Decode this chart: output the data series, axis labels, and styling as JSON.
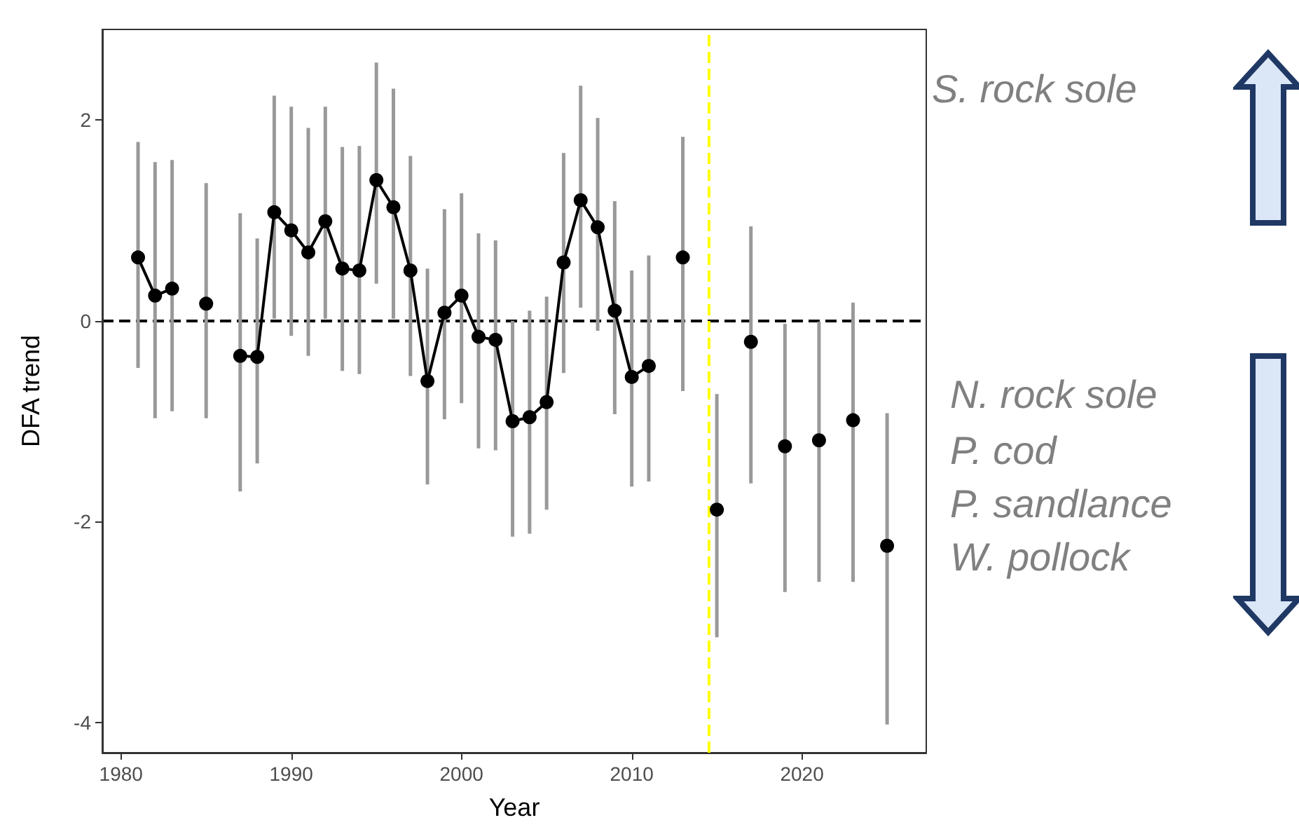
{
  "chart_data": {
    "type": "line",
    "xlabel": "Year",
    "ylabel": "DFA trend",
    "x": [
      1981,
      1982,
      1983,
      1984,
      1985,
      1986,
      1987,
      1988,
      1989,
      1990,
      1991,
      1992,
      1993,
      1994,
      1995,
      1996,
      1997,
      1998,
      1999,
      2000,
      2001,
      2002,
      2003,
      2004,
      2005,
      2006,
      2007,
      2008,
      2009,
      2010,
      2011,
      2012,
      2013,
      2014,
      2015,
      2016,
      2017,
      2018,
      2019,
      2020,
      2021,
      2022,
      2023,
      2024,
      2025
    ],
    "series": [
      {
        "color": "#000000",
        "values": [
          0.63,
          0.25,
          0.32,
          null,
          0.17,
          null,
          -0.35,
          -0.36,
          1.08,
          0.9,
          0.68,
          0.99,
          0.52,
          0.5,
          1.4,
          1.13,
          0.5,
          -0.6,
          0.08,
          0.25,
          -0.16,
          -0.19,
          -1.0,
          -0.96,
          -0.81,
          0.58,
          1.2,
          0.93,
          0.1,
          -0.56,
          -0.45,
          null,
          0.63,
          null,
          -1.88,
          null,
          -0.21,
          null,
          -1.25,
          null,
          -1.19,
          null,
          -0.99,
          null,
          -2.24
        ],
        "errors": [
          [
            -0.47,
            1.78
          ],
          [
            -0.97,
            1.58
          ],
          [
            -0.9,
            1.6
          ],
          null,
          [
            -0.97,
            1.37
          ],
          null,
          [
            -1.7,
            1.07
          ],
          [
            -1.42,
            0.82
          ],
          [
            0.02,
            2.24
          ],
          [
            -0.15,
            2.13
          ],
          [
            -0.35,
            1.92
          ],
          [
            0.02,
            2.13
          ],
          [
            -0.5,
            1.73
          ],
          [
            -0.53,
            1.74
          ],
          [
            0.37,
            2.57
          ],
          [
            0.02,
            2.31
          ],
          [
            -0.55,
            1.64
          ],
          [
            -1.63,
            0.52
          ],
          [
            -0.98,
            1.11
          ],
          [
            -0.82,
            1.27
          ],
          [
            -1.27,
            0.87
          ],
          [
            -1.29,
            0.8
          ],
          [
            -2.15,
            0.0
          ],
          [
            -2.12,
            0.1
          ],
          [
            -1.88,
            0.24
          ],
          [
            -0.52,
            1.67
          ],
          [
            0.13,
            2.34
          ],
          [
            -0.1,
            2.02
          ],
          [
            -0.93,
            1.19
          ],
          [
            -1.65,
            0.5
          ],
          [
            -1.6,
            0.65
          ],
          null,
          [
            -0.7,
            1.83
          ],
          null,
          [
            -3.15,
            -0.73
          ],
          null,
          [
            -1.62,
            0.94
          ],
          null,
          [
            -2.7,
            -0.03
          ],
          null,
          [
            -2.6,
            -0.01
          ],
          null,
          [
            -2.6,
            0.18
          ],
          null,
          [
            -4.02,
            -0.92
          ]
        ]
      }
    ],
    "xlim": [
      1978.9,
      2027.3
    ],
    "xticks": [
      1980,
      1990,
      2000,
      2010,
      2020
    ],
    "ylim": [
      -4.3,
      2.9
    ],
    "yticks": [
      -4,
      -2,
      0,
      2
    ],
    "ref_lines": [
      {
        "axis": "y",
        "value": 0,
        "color": "#000000",
        "line_style": "dashed"
      },
      {
        "axis": "x",
        "value": 2014.5,
        "color": "#ffff00",
        "line_style": "dashed"
      }
    ],
    "annotations": [
      "S. rock sole",
      "N. rock sole",
      "P. cod",
      "P. sandlance",
      "W. pollock"
    ],
    "grid": false,
    "marker": "circle",
    "line_style": "solid"
  }
}
